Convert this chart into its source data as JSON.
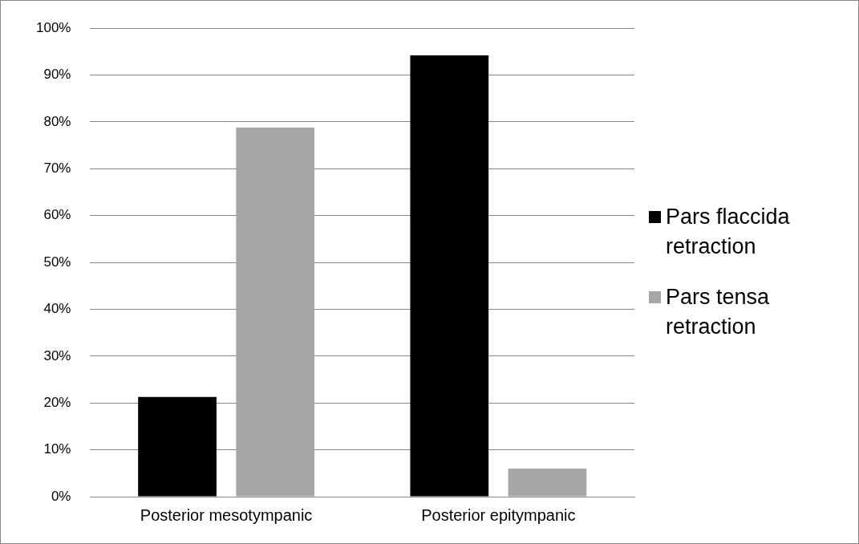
{
  "chart_data": {
    "type": "bar",
    "categories": [
      "Posterior mesotympanic",
      "Posterior epitympanic"
    ],
    "series": [
      {
        "name": "Pars flaccida retraction",
        "color": "#000000",
        "values": [
          21.3,
          94.2
        ]
      },
      {
        "name": "Pars tensa retraction",
        "color": "#a6a6a6",
        "values": [
          78.8,
          6
        ]
      }
    ],
    "ylim": [
      0,
      100
    ],
    "yticks": [
      {
        "value": 0,
        "label": "0%"
      },
      {
        "value": 10,
        "label": "10%"
      },
      {
        "value": 20,
        "label": "20%"
      },
      {
        "value": 30,
        "label": "30%"
      },
      {
        "value": 40,
        "label": "40%"
      },
      {
        "value": 50,
        "label": "50%"
      },
      {
        "value": 60,
        "label": "60%"
      },
      {
        "value": 70,
        "label": "70%"
      },
      {
        "value": 80,
        "label": "80%"
      },
      {
        "value": 90,
        "label": "90%"
      },
      {
        "value": 100,
        "label": "100%"
      }
    ],
    "grid": "y",
    "legend": "right"
  }
}
